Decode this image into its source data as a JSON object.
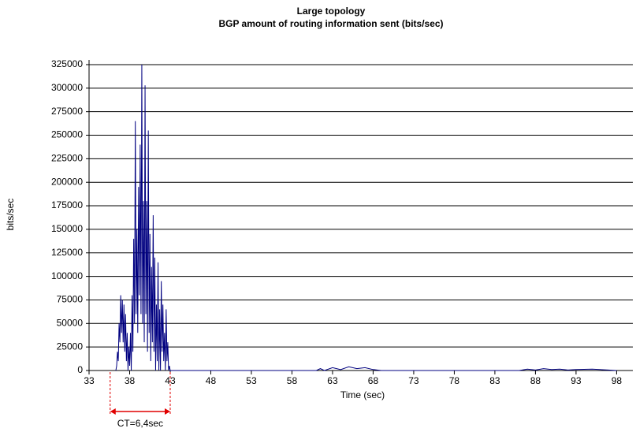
{
  "chart_data": {
    "type": "line",
    "title": "Large topology",
    "subtitle": "BGP amount of routing information sent (bits/sec)",
    "x_label": "Time (sec)",
    "y_label": "bits/sec",
    "xlim": [
      33,
      100
    ],
    "xticks": [
      33,
      38,
      43,
      48,
      53,
      58,
      63,
      68,
      73,
      78,
      83,
      88,
      93,
      98
    ],
    "ylim": [
      0,
      330000
    ],
    "yticks": [
      0,
      25000,
      50000,
      75000,
      100000,
      125000,
      150000,
      175000,
      200000,
      225000,
      250000,
      275000,
      300000,
      325000
    ],
    "grid": true,
    "series": [
      {
        "color": "#000080",
        "x": [
          36.3,
          36.4,
          36.5,
          36.6,
          36.7,
          36.8,
          36.9,
          37.0,
          37.1,
          37.2,
          37.3,
          37.4,
          37.5,
          37.6,
          37.7,
          37.8,
          37.9,
          38.0,
          38.1,
          38.2,
          38.3,
          38.4,
          38.5,
          38.6,
          38.7,
          38.8,
          38.9,
          39.0,
          39.1,
          39.2,
          39.3,
          39.4,
          39.5,
          39.6,
          39.7,
          39.8,
          39.9,
          40.0,
          40.1,
          40.2,
          40.3,
          40.4,
          40.5,
          40.6,
          40.7,
          40.8,
          40.9,
          41.0,
          41.1,
          41.2,
          41.3,
          41.4,
          41.5,
          41.6,
          41.7,
          41.8,
          41.9,
          42.0,
          42.1,
          42.2,
          42.3,
          42.4,
          42.5,
          42.6,
          42.7,
          42.8,
          42.9,
          43.0,
          61,
          61.5,
          62,
          63,
          64,
          65,
          66,
          67,
          68,
          69,
          86,
          87,
          88,
          89,
          90,
          91,
          92,
          93,
          95,
          97,
          98
        ],
        "values": [
          0,
          5000,
          20000,
          10000,
          50000,
          30000,
          80000,
          40000,
          75000,
          30000,
          70000,
          20000,
          60000,
          10000,
          40000,
          0,
          25000,
          5000,
          40000,
          0,
          80000,
          20000,
          140000,
          50000,
          265000,
          60000,
          150000,
          40000,
          195000,
          80000,
          240000,
          60000,
          325000,
          50000,
          180000,
          30000,
          303000,
          60000,
          180000,
          20000,
          255000,
          40000,
          145000,
          10000,
          110000,
          30000,
          165000,
          20000,
          120000,
          0,
          70000,
          10000,
          115000,
          0,
          65000,
          0,
          95000,
          20000,
          70000,
          10000,
          40000,
          0,
          65000,
          10000,
          30000,
          0,
          5000,
          0,
          0,
          2000,
          0,
          3000,
          1000,
          4000,
          2000,
          3000,
          1000,
          0,
          0,
          1500,
          500,
          2000,
          1000,
          1500,
          500,
          1000,
          1500,
          500,
          0
        ]
      }
    ],
    "annotation": {
      "text": "CT=6,4sec",
      "x_start": 35.6,
      "x_end": 43.0
    }
  }
}
